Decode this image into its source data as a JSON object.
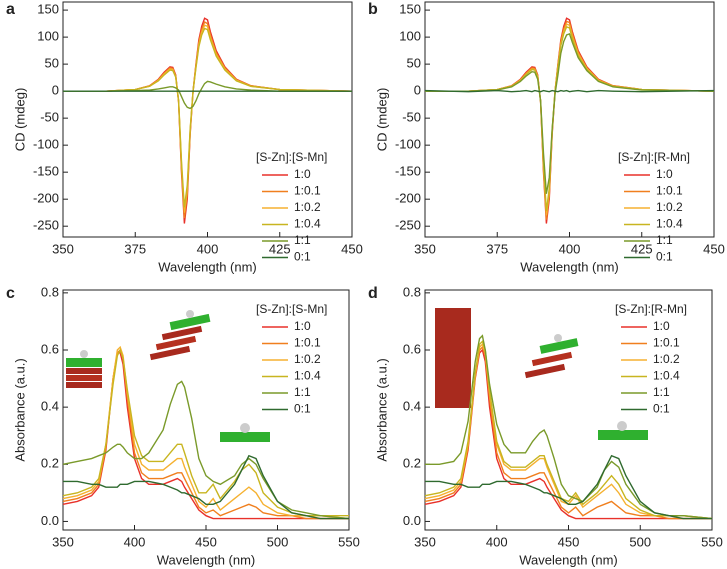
{
  "chart_data": [
    {
      "type": "line",
      "panel": "a",
      "ylabel": "CD (mdeg)",
      "xlabel": "Wavelength (nm)",
      "legend_title": "[S-Zn]:[S-Mn]",
      "xlim": [
        350,
        450
      ],
      "xticks": [
        350,
        375,
        400,
        425,
        450
      ],
      "ylim": [
        -270,
        165
      ],
      "yticks": [
        -250,
        -200,
        -150,
        -100,
        -50,
        0,
        50,
        100,
        150
      ],
      "x": [
        350,
        365,
        375,
        380,
        383,
        385,
        387,
        388,
        389,
        390,
        391,
        392,
        393,
        394,
        395,
        396,
        397,
        398,
        399,
        400,
        401,
        403,
        406,
        410,
        415,
        425,
        450
      ],
      "series": [
        {
          "name": "1:0",
          "color": "#e8312a",
          "values": [
            0,
            0,
            3,
            10,
            22,
            35,
            45,
            44,
            30,
            -20,
            -150,
            -245,
            -200,
            -80,
            0,
            50,
            95,
            120,
            135,
            132,
            110,
            75,
            45,
            22,
            10,
            3,
            0
          ]
        },
        {
          "name": "1:0.1",
          "color": "#f07f1e",
          "values": [
            0,
            0,
            3,
            10,
            21,
            33,
            43,
            42,
            28,
            -19,
            -142,
            -235,
            -190,
            -76,
            0,
            48,
            90,
            114,
            128,
            125,
            104,
            71,
            43,
            21,
            10,
            3,
            0
          ]
        },
        {
          "name": "1:0.2",
          "color": "#f5b130",
          "values": [
            0,
            0,
            3,
            9,
            20,
            32,
            41,
            40,
            27,
            -18,
            -136,
            -225,
            -182,
            -73,
            0,
            45,
            86,
            109,
            122,
            120,
            99,
            68,
            41,
            20,
            9,
            3,
            0
          ]
        },
        {
          "name": "1:0.4",
          "color": "#c8b520",
          "values": [
            0,
            0,
            3,
            9,
            19,
            30,
            39,
            38,
            26,
            -17,
            -130,
            -215,
            -174,
            -70,
            0,
            43,
            82,
            104,
            116,
            114,
            95,
            65,
            39,
            19,
            9,
            3,
            0
          ]
        },
        {
          "name": "1:1",
          "color": "#7a9a2a",
          "values": [
            0,
            0,
            1,
            2,
            4,
            6,
            8,
            8,
            6,
            2,
            -10,
            -22,
            -30,
            -32,
            -28,
            -18,
            -5,
            5,
            14,
            18,
            17,
            13,
            8,
            4,
            2,
            0,
            0
          ]
        },
        {
          "name": "0:1",
          "color": "#2f6a2f",
          "values": [
            0,
            0,
            0,
            0,
            0,
            0,
            0,
            0,
            0,
            0,
            0,
            0,
            0,
            0,
            0,
            0,
            0,
            0,
            0,
            0,
            0,
            0,
            0,
            0,
            0,
            0,
            0
          ]
        }
      ]
    },
    {
      "type": "line",
      "panel": "b",
      "ylabel": "CD (mdeg)",
      "xlabel": "Wavelength (nm)",
      "legend_title": "[S-Zn]:[R-Mn]",
      "xlim": [
        350,
        450
      ],
      "xticks": [
        350,
        375,
        400,
        425,
        450
      ],
      "ylim": [
        -270,
        165
      ],
      "yticks": [
        -250,
        -200,
        -150,
        -100,
        -50,
        0,
        50,
        100,
        150
      ],
      "x": [
        350,
        365,
        375,
        380,
        383,
        385,
        387,
        388,
        389,
        390,
        391,
        392,
        393,
        394,
        395,
        396,
        397,
        398,
        399,
        400,
        401,
        403,
        406,
        410,
        415,
        425,
        450
      ],
      "series": [
        {
          "name": "1:0",
          "color": "#e8312a",
          "values": [
            0,
            0,
            3,
            10,
            22,
            35,
            45,
            44,
            30,
            -20,
            -150,
            -245,
            -200,
            -80,
            0,
            50,
            95,
            120,
            135,
            132,
            110,
            75,
            45,
            22,
            10,
            3,
            0
          ]
        },
        {
          "name": "1:0.1",
          "color": "#f07f1e",
          "values": [
            0,
            0,
            3,
            10,
            21,
            33,
            43,
            42,
            28,
            -19,
            -144,
            -238,
            -193,
            -77,
            0,
            48,
            91,
            115,
            129,
            127,
            106,
            72,
            43,
            21,
            10,
            3,
            0
          ]
        },
        {
          "name": "1:0.2",
          "color": "#f5b130",
          "values": [
            0,
            0,
            3,
            9,
            20,
            32,
            41,
            40,
            27,
            -18,
            -138,
            -230,
            -186,
            -74,
            0,
            46,
            87,
            110,
            124,
            122,
            101,
            69,
            42,
            20,
            9,
            3,
            0
          ]
        },
        {
          "name": "1:0.4",
          "color": "#c8b520",
          "values": [
            0,
            0,
            3,
            9,
            19,
            31,
            40,
            39,
            26,
            -18,
            -134,
            -222,
            -180,
            -72,
            0,
            44,
            84,
            106,
            119,
            117,
            97,
            66,
            40,
            19,
            9,
            3,
            0
          ]
        },
        {
          "name": "1:1",
          "color": "#7a9a2a",
          "values": [
            0,
            0,
            2,
            8,
            18,
            28,
            36,
            35,
            22,
            -18,
            -115,
            -190,
            -160,
            -70,
            -5,
            30,
            70,
            92,
            104,
            106,
            90,
            62,
            38,
            18,
            8,
            2,
            0
          ]
        },
        {
          "name": "0:1",
          "color": "#2f6a2f",
          "values": [
            1,
            -1,
            1,
            -1,
            0,
            1,
            -1,
            1,
            0,
            -1,
            1,
            0,
            -1,
            1,
            0,
            -1,
            1,
            0,
            1,
            -1,
            0,
            1,
            -1,
            1,
            0,
            -1,
            1
          ]
        }
      ]
    },
    {
      "type": "line",
      "panel": "c",
      "ylabel": "Absorbance (a.u.)",
      "xlabel": "Wavelength (nm)",
      "legend_title": "[S-Zn]:[S-Mn]",
      "xlim": [
        350,
        550
      ],
      "xticks": [
        350,
        400,
        450,
        500,
        550
      ],
      "ylim": [
        -0.03,
        0.81
      ],
      "yticks": [
        {
          "value": 0,
          "label": "0.0"
        },
        0.2,
        0.4,
        0.6,
        0.8
      ],
      "x": [
        350,
        360,
        370,
        375,
        380,
        385,
        388,
        390,
        392,
        395,
        400,
        405,
        410,
        420,
        425,
        430,
        433,
        435,
        440,
        445,
        450,
        455,
        460,
        470,
        475,
        480,
        485,
        490,
        500,
        510,
        520,
        530,
        550
      ],
      "series": [
        {
          "name": "1:0",
          "color": "#e8312a",
          "values": [
            0.06,
            0.07,
            0.09,
            0.12,
            0.25,
            0.5,
            0.59,
            0.59,
            0.55,
            0.4,
            0.22,
            0.15,
            0.13,
            0.13,
            0.14,
            0.15,
            0.14,
            0.12,
            0.08,
            0.04,
            0.02,
            0.01,
            0.01,
            0.01,
            0.01,
            0.01,
            0.01,
            0.01,
            0.01,
            0.01,
            0.01,
            0.01,
            0.01
          ]
        },
        {
          "name": "1:0.1",
          "color": "#f07f1e",
          "values": [
            0.07,
            0.08,
            0.1,
            0.13,
            0.26,
            0.5,
            0.59,
            0.6,
            0.57,
            0.43,
            0.24,
            0.17,
            0.15,
            0.15,
            0.16,
            0.17,
            0.17,
            0.15,
            0.1,
            0.05,
            0.03,
            0.04,
            0.02,
            0.04,
            0.05,
            0.06,
            0.05,
            0.03,
            0.02,
            0.02,
            0.01,
            0.01,
            0.01
          ]
        },
        {
          "name": "1:0.2",
          "color": "#f5b130",
          "values": [
            0.08,
            0.09,
            0.11,
            0.14,
            0.27,
            0.5,
            0.6,
            0.61,
            0.58,
            0.45,
            0.27,
            0.2,
            0.18,
            0.18,
            0.2,
            0.22,
            0.22,
            0.19,
            0.13,
            0.07,
            0.05,
            0.08,
            0.04,
            0.08,
            0.1,
            0.12,
            0.1,
            0.06,
            0.03,
            0.02,
            0.02,
            0.02,
            0.01
          ]
        },
        {
          "name": "1:0.4",
          "color": "#c8b520",
          "values": [
            0.09,
            0.1,
            0.12,
            0.15,
            0.27,
            0.48,
            0.58,
            0.6,
            0.57,
            0.46,
            0.3,
            0.23,
            0.21,
            0.21,
            0.24,
            0.27,
            0.27,
            0.24,
            0.16,
            0.1,
            0.1,
            0.13,
            0.08,
            0.14,
            0.18,
            0.2,
            0.17,
            0.1,
            0.05,
            0.03,
            0.02,
            0.02,
            0.02
          ]
        },
        {
          "name": "1:1",
          "color": "#7a9a2a",
          "values": [
            0.2,
            0.21,
            0.22,
            0.23,
            0.24,
            0.26,
            0.27,
            0.27,
            0.26,
            0.24,
            0.22,
            0.22,
            0.24,
            0.32,
            0.41,
            0.48,
            0.49,
            0.47,
            0.36,
            0.22,
            0.16,
            0.14,
            0.13,
            0.16,
            0.2,
            0.22,
            0.2,
            0.15,
            0.07,
            0.04,
            0.03,
            0.02,
            0.01
          ]
        },
        {
          "name": "0:1",
          "color": "#2f6a2f",
          "values": [
            0.14,
            0.14,
            0.13,
            0.13,
            0.12,
            0.12,
            0.12,
            0.13,
            0.13,
            0.13,
            0.14,
            0.14,
            0.14,
            0.13,
            0.12,
            0.11,
            0.1,
            0.1,
            0.09,
            0.08,
            0.06,
            0.06,
            0.07,
            0.13,
            0.18,
            0.23,
            0.22,
            0.16,
            0.07,
            0.03,
            0.02,
            0.01,
            0.01
          ]
        }
      ]
    },
    {
      "type": "line",
      "panel": "d",
      "ylabel": "Absorbance (a.u.)",
      "xlabel": "Wavelength (nm)",
      "legend_title": "[S-Zn]:[R-Mn]",
      "xlim": [
        350,
        550
      ],
      "xticks": [
        350,
        400,
        450,
        500,
        550
      ],
      "ylim": [
        -0.03,
        0.81
      ],
      "yticks": [
        {
          "value": 0,
          "label": "0.0"
        },
        0.2,
        0.4,
        0.6,
        0.8
      ],
      "x": [
        350,
        360,
        370,
        375,
        380,
        385,
        388,
        390,
        392,
        395,
        400,
        405,
        410,
        420,
        425,
        430,
        433,
        435,
        440,
        445,
        450,
        455,
        460,
        470,
        475,
        480,
        485,
        490,
        500,
        510,
        520,
        530,
        550
      ],
      "series": [
        {
          "name": "1:0",
          "color": "#e8312a",
          "values": [
            0.06,
            0.07,
            0.09,
            0.12,
            0.25,
            0.5,
            0.59,
            0.6,
            0.56,
            0.4,
            0.22,
            0.15,
            0.13,
            0.13,
            0.14,
            0.15,
            0.14,
            0.12,
            0.08,
            0.04,
            0.02,
            0.01,
            0.01,
            0.01,
            0.01,
            0.01,
            0.01,
            0.01,
            0.01,
            0.01,
            0.01,
            0.01,
            0.01
          ]
        },
        {
          "name": "1:0.1",
          "color": "#f07f1e",
          "values": [
            0.07,
            0.08,
            0.1,
            0.13,
            0.26,
            0.51,
            0.6,
            0.61,
            0.58,
            0.43,
            0.24,
            0.17,
            0.15,
            0.15,
            0.16,
            0.17,
            0.17,
            0.15,
            0.1,
            0.05,
            0.03,
            0.05,
            0.02,
            0.05,
            0.06,
            0.07,
            0.05,
            0.03,
            0.02,
            0.02,
            0.01,
            0.01,
            0.01
          ]
        },
        {
          "name": "1:0.2",
          "color": "#f5b130",
          "values": [
            0.08,
            0.09,
            0.11,
            0.14,
            0.27,
            0.51,
            0.61,
            0.62,
            0.59,
            0.45,
            0.27,
            0.2,
            0.18,
            0.18,
            0.2,
            0.22,
            0.22,
            0.19,
            0.13,
            0.07,
            0.06,
            0.09,
            0.05,
            0.09,
            0.11,
            0.13,
            0.1,
            0.06,
            0.03,
            0.02,
            0.02,
            0.02,
            0.01
          ]
        },
        {
          "name": "1:0.4",
          "color": "#c8b520",
          "values": [
            0.09,
            0.1,
            0.12,
            0.15,
            0.28,
            0.52,
            0.62,
            0.63,
            0.6,
            0.46,
            0.28,
            0.21,
            0.19,
            0.19,
            0.21,
            0.23,
            0.23,
            0.2,
            0.14,
            0.08,
            0.07,
            0.1,
            0.06,
            0.1,
            0.13,
            0.16,
            0.13,
            0.08,
            0.04,
            0.02,
            0.02,
            0.02,
            0.01
          ]
        },
        {
          "name": "1:1",
          "color": "#7a9a2a",
          "values": [
            0.2,
            0.2,
            0.21,
            0.24,
            0.35,
            0.56,
            0.64,
            0.65,
            0.6,
            0.48,
            0.34,
            0.27,
            0.24,
            0.24,
            0.28,
            0.31,
            0.32,
            0.3,
            0.22,
            0.13,
            0.09,
            0.08,
            0.07,
            0.12,
            0.18,
            0.21,
            0.19,
            0.13,
            0.06,
            0.03,
            0.02,
            0.02,
            0.01
          ]
        },
        {
          "name": "0:1",
          "color": "#2f6a2f",
          "values": [
            0.14,
            0.14,
            0.13,
            0.13,
            0.12,
            0.12,
            0.12,
            0.13,
            0.13,
            0.13,
            0.14,
            0.14,
            0.14,
            0.13,
            0.12,
            0.11,
            0.1,
            0.1,
            0.09,
            0.08,
            0.06,
            0.06,
            0.07,
            0.13,
            0.18,
            0.23,
            0.22,
            0.16,
            0.07,
            0.03,
            0.02,
            0.01,
            0.01
          ]
        }
      ]
    }
  ]
}
